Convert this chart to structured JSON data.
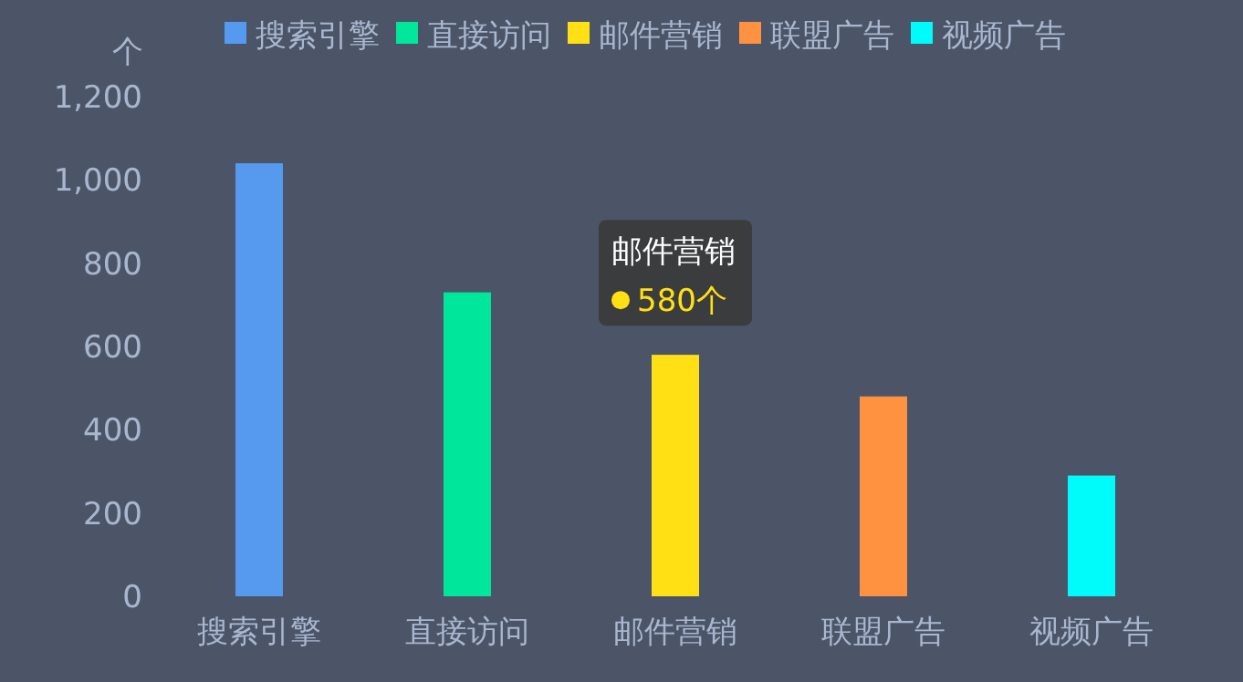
{
  "chart_data": {
    "type": "bar",
    "ylabel": "个",
    "categories": [
      "搜索引擎",
      "直接访问",
      "邮件营销",
      "联盟广告",
      "视频广告"
    ],
    "series": [
      {
        "name": "搜索引擎",
        "color": "#559aef",
        "values": [
          1040,
          null,
          null,
          null,
          null
        ]
      },
      {
        "name": "直接访问",
        "color": "#00e69a",
        "values": [
          null,
          730,
          null,
          null,
          null
        ]
      },
      {
        "name": "邮件营销",
        "color": "#ffe014",
        "values": [
          null,
          null,
          580,
          null,
          null
        ]
      },
      {
        "name": "联盟广告",
        "color": "#ff9241",
        "values": [
          null,
          null,
          null,
          480,
          null
        ]
      },
      {
        "name": "视频广告",
        "color": "#00fbfb",
        "values": [
          null,
          null,
          null,
          null,
          290
        ]
      }
    ],
    "ylim": [
      0,
      1200
    ],
    "yticks": [
      0,
      {
        "value": 200,
        "label": "200"
      },
      {
        "value": 400,
        "label": "400"
      },
      {
        "value": 600,
        "label": "600"
      },
      {
        "value": 800,
        "label": "800"
      },
      {
        "value": 1000,
        "label": "1,000"
      },
      {
        "value": 1200,
        "label": "1,200"
      }
    ],
    "grid": false,
    "legend": "top right",
    "annotations": [
      {
        "text": "邮件营销",
        "x": "邮件营销",
        "y": 580
      },
      {
        "text": "580个",
        "x": "邮件营销",
        "y": 580
      }
    ]
  }
}
